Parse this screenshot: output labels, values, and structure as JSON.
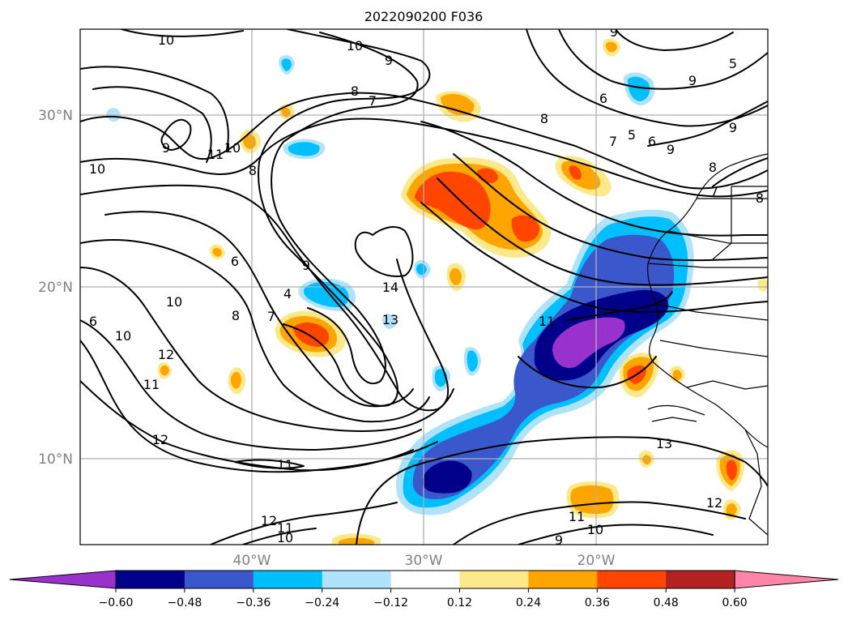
{
  "map": {
    "title": "2022090200 F036",
    "lat_labels": [
      "30°N",
      "20°N",
      "10°N"
    ],
    "lon_labels": [
      "40°W",
      "30°W",
      "20°W"
    ]
  },
  "contour_labels": [
    "10",
    "10",
    "9",
    "9",
    "8",
    "7",
    "6",
    "9",
    "9",
    "8",
    "11",
    "10",
    "8",
    "9",
    "10",
    "7",
    "9",
    "6",
    "4",
    "7",
    "8",
    "5",
    "14",
    "13",
    "11",
    "10",
    "6",
    "10",
    "12",
    "11",
    "12",
    "11",
    "12",
    "11",
    "10",
    "13",
    "12",
    "11",
    "10",
    "9",
    "9",
    "8",
    "8",
    "7",
    "6",
    "5"
  ],
  "colorbar": {
    "ticks": [
      "−0.60",
      "−0.48",
      "−0.36",
      "−0.24",
      "−0.12",
      "0.12",
      "0.24",
      "0.36",
      "0.48",
      "0.60"
    ],
    "colors": [
      "#9932cc",
      "#00008b",
      "#3a57cc",
      "#00bfff",
      "#aee3fb",
      "#ffffff",
      "#fde98a",
      "#ffa500",
      "#ff4500",
      "#b22222",
      "#ff85a8"
    ]
  },
  "chart_data": {
    "type": "heatmap",
    "title": "2022090200 F036",
    "levels": [
      -0.6,
      -0.48,
      -0.36,
      -0.24,
      -0.12,
      0.12,
      0.24,
      0.36,
      0.48,
      0.6
    ],
    "lon_range": [
      -50,
      -10
    ],
    "lat_range": [
      5,
      35
    ],
    "lon_ticks": [
      -40,
      -30,
      -20
    ],
    "lat_ticks": [
      10,
      20,
      30
    ],
    "contour_levels": [
      4,
      5,
      6,
      7,
      8,
      9,
      10,
      11,
      12,
      13,
      14
    ]
  }
}
